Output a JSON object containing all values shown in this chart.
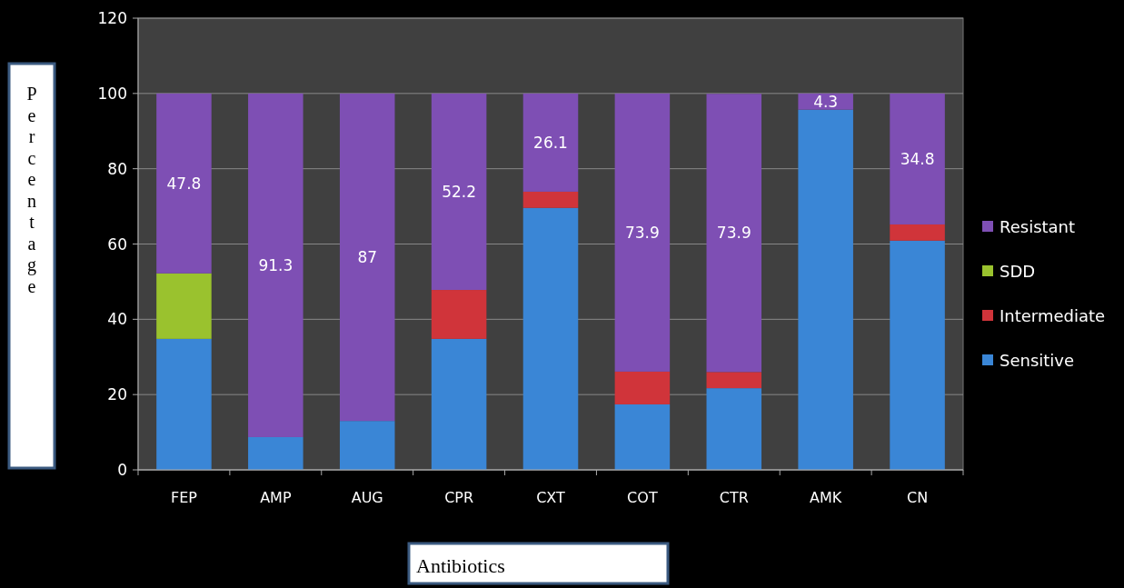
{
  "chart_data": {
    "type": "bar",
    "stacked": true,
    "xlabel": "Antibiotics",
    "ylabel": "Percentage",
    "categories": [
      "FEP",
      "AMP",
      "AUG",
      "CPR",
      "CXT",
      "COT",
      "CTR",
      "AMK",
      "CN"
    ],
    "series": [
      {
        "name": "Sensitive",
        "color": "#3a86d6",
        "values": [
          34.8,
          8.7,
          13,
          34.8,
          69.6,
          17.4,
          21.7,
          95.7,
          60.9
        ]
      },
      {
        "name": "Intermediate",
        "color": "#d0343a",
        "values": [
          0,
          0,
          0,
          13,
          4.3,
          8.7,
          4.3,
          0,
          4.3
        ]
      },
      {
        "name": "SDD",
        "color": "#9ac22e",
        "values": [
          17.4,
          0,
          0,
          0,
          0,
          0,
          0,
          0,
          0
        ]
      },
      {
        "name": "Resistant",
        "color": "#7e4fb4",
        "values": [
          47.8,
          91.3,
          87,
          52.2,
          26.1,
          73.9,
          73.9,
          4.3,
          34.8
        ],
        "value_labels": [
          "47.8",
          "91.3",
          "87",
          "52.2",
          "26.1",
          "73.9",
          "73.9",
          "4.3",
          "34.8"
        ]
      }
    ],
    "ylim": [
      0,
      120
    ],
    "yticks": [
      0,
      20,
      40,
      60,
      80,
      100,
      120
    ],
    "grid": "y",
    "legend": "right"
  }
}
